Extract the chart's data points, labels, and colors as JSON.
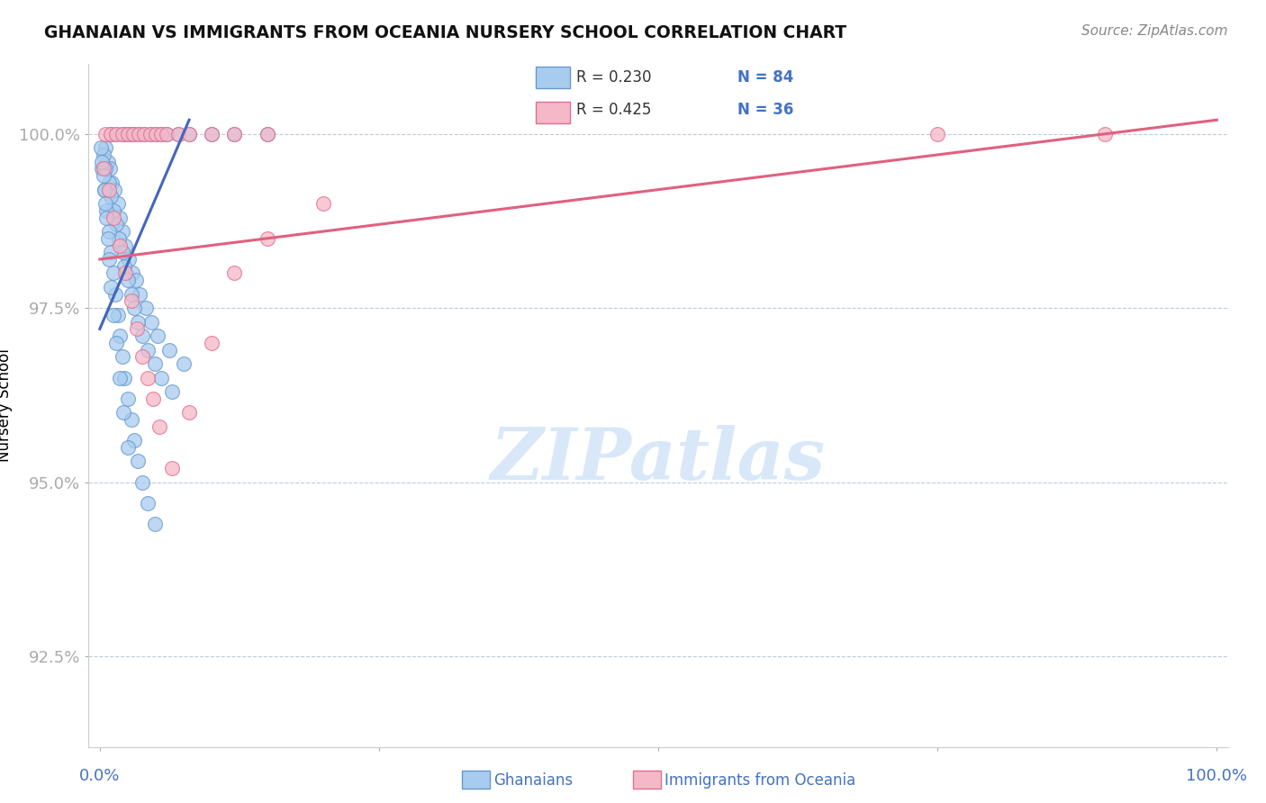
{
  "title": "GHANAIAN VS IMMIGRANTS FROM OCEANIA NURSERY SCHOOL CORRELATION CHART",
  "source": "Source: ZipAtlas.com",
  "ylabel": "Nursery School",
  "y_ticks": [
    92.5,
    95.0,
    97.5,
    100.0
  ],
  "y_tick_labels": [
    "92.5%",
    "95.0%",
    "97.5%",
    "100.0%"
  ],
  "x_lim": [
    -1,
    101
  ],
  "y_lim": [
    91.2,
    101.0
  ],
  "legend_r1": "R = 0.230",
  "legend_n1": "N = 84",
  "legend_r2": "R = 0.425",
  "legend_n2": "N = 36",
  "color_blue_fill": "#A8CCF0",
  "color_blue_edge": "#6699CC",
  "color_pink_fill": "#F5B8C8",
  "color_pink_edge": "#E07090",
  "color_blue_line": "#4466BB",
  "color_pink_line": "#E06080",
  "color_text_blue": "#4472C4",
  "color_text_black": "#333333",
  "watermark_color": "#D8E8F8",
  "gh_x": [
    1.0,
    1.5,
    2.0,
    2.2,
    2.5,
    2.8,
    3.0,
    3.5,
    4.0,
    4.5,
    5.0,
    5.5,
    6.0,
    7.0,
    8.0,
    10.0,
    12.0,
    15.0,
    0.5,
    0.7,
    0.9,
    1.1,
    1.3,
    1.6,
    1.8,
    2.0,
    2.3,
    2.6,
    2.9,
    3.2,
    3.6,
    4.1,
    4.6,
    5.2,
    6.2,
    7.5,
    0.3,
    0.5,
    0.8,
    1.0,
    1.2,
    1.5,
    1.7,
    2.0,
    2.2,
    2.5,
    2.8,
    3.1,
    3.4,
    3.8,
    4.3,
    4.9,
    5.5,
    6.5,
    0.2,
    0.4,
    0.6,
    0.8,
    1.0,
    1.2,
    1.4,
    1.6,
    1.8,
    2.0,
    2.2,
    2.5,
    2.8,
    3.1,
    3.4,
    3.8,
    4.3,
    4.9,
    0.1,
    0.2,
    0.3,
    0.4,
    0.5,
    0.6,
    0.7,
    0.8,
    1.0,
    1.2,
    1.5,
    1.8,
    2.1,
    2.5
  ],
  "gh_y": [
    100.0,
    100.0,
    100.0,
    100.0,
    100.0,
    100.0,
    100.0,
    100.0,
    100.0,
    100.0,
    100.0,
    100.0,
    100.0,
    100.0,
    100.0,
    100.0,
    100.0,
    100.0,
    99.8,
    99.6,
    99.5,
    99.3,
    99.2,
    99.0,
    98.8,
    98.6,
    98.4,
    98.2,
    98.0,
    97.9,
    97.7,
    97.5,
    97.3,
    97.1,
    96.9,
    96.7,
    99.7,
    99.5,
    99.3,
    99.1,
    98.9,
    98.7,
    98.5,
    98.3,
    98.1,
    97.9,
    97.7,
    97.5,
    97.3,
    97.1,
    96.9,
    96.7,
    96.5,
    96.3,
    99.5,
    99.2,
    98.9,
    98.6,
    98.3,
    98.0,
    97.7,
    97.4,
    97.1,
    96.8,
    96.5,
    96.2,
    95.9,
    95.6,
    95.3,
    95.0,
    94.7,
    94.4,
    99.8,
    99.6,
    99.4,
    99.2,
    99.0,
    98.8,
    98.5,
    98.2,
    97.8,
    97.4,
    97.0,
    96.5,
    96.0,
    95.5
  ],
  "oc_x": [
    0.5,
    1.0,
    1.5,
    2.0,
    2.5,
    3.0,
    3.5,
    4.0,
    4.5,
    5.0,
    5.5,
    6.0,
    7.0,
    8.0,
    10.0,
    12.0,
    15.0,
    90.0,
    75.0,
    0.3,
    0.8,
    1.2,
    1.8,
    2.3,
    2.8,
    3.3,
    3.8,
    4.3,
    4.8,
    5.3,
    6.5,
    8.0,
    10.0,
    12.0,
    15.0,
    20.0
  ],
  "oc_y": [
    100.0,
    100.0,
    100.0,
    100.0,
    100.0,
    100.0,
    100.0,
    100.0,
    100.0,
    100.0,
    100.0,
    100.0,
    100.0,
    100.0,
    100.0,
    100.0,
    100.0,
    100.0,
    100.0,
    99.5,
    99.2,
    98.8,
    98.4,
    98.0,
    97.6,
    97.2,
    96.8,
    96.5,
    96.2,
    95.8,
    95.2,
    96.0,
    97.0,
    98.0,
    98.5,
    99.0
  ],
  "gh_trend_x0": 0.0,
  "gh_trend_y0": 97.2,
  "gh_trend_x1": 8.0,
  "gh_trend_y1": 100.2,
  "oc_trend_x0": 0.0,
  "oc_trend_y0": 98.2,
  "oc_trend_x1": 100.0,
  "oc_trend_y1": 100.2
}
